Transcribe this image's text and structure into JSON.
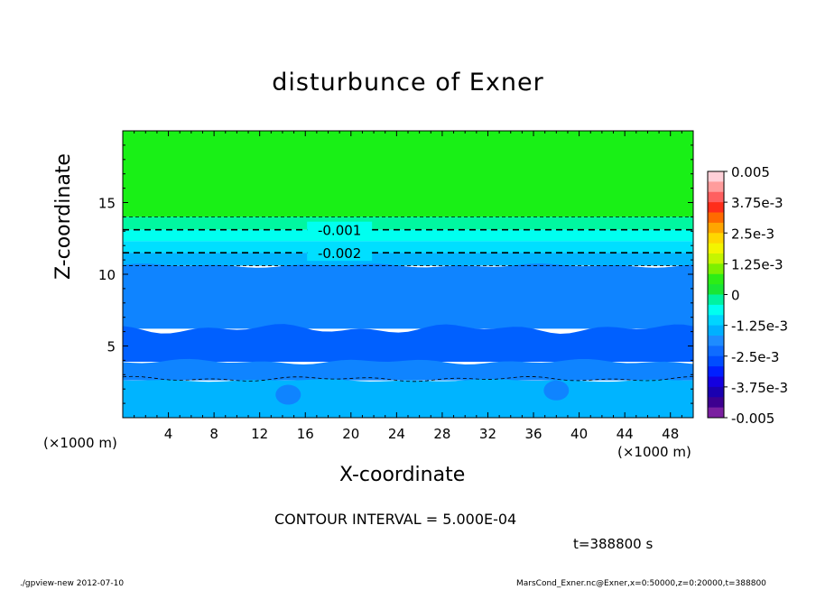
{
  "title": "disturbunce of Exner",
  "x_unit_left": "(×1000 m)",
  "x_unit_right": "(×1000 m)",
  "contour_interval": "CONTOUR INTERVAL = 5.000E-04",
  "time_label": "t=388800 s",
  "footer_left": "./gpview-new   2012-07-10",
  "footer_right": "MarsCond_Exner.nc@Exner,x=0:50000,z=0:20000,t=388800",
  "chart_data": {
    "type": "heatmap",
    "title": "disturbunce of Exner",
    "xlabel": "X-coordinate",
    "ylabel": "Z-coordinate",
    "xlim": [
      0,
      50
    ],
    "ylim": [
      0,
      20
    ],
    "xticks": [
      4,
      8,
      12,
      16,
      20,
      24,
      28,
      32,
      36,
      40,
      44,
      48
    ],
    "yticks": [
      5,
      10,
      15
    ],
    "contour_interval": 0.0005,
    "contour_labels": [
      {
        "text": "-0.001",
        "x": 19,
        "z": 13.1
      },
      {
        "text": "-0.002",
        "x": 19,
        "z": 11.5
      }
    ],
    "dashed_contours_z": [
      14.0,
      13.1,
      11.5,
      10.6
    ],
    "bands": [
      {
        "z_from": 14.0,
        "z_to": 20,
        "value_range": [
          -0.0005,
          0
        ],
        "color": "#19f016"
      },
      {
        "z_from": 13.1,
        "z_to": 14.0,
        "value_range": [
          -0.001,
          -0.0005
        ],
        "color": "#00f7a0"
      },
      {
        "z_from": 12.3,
        "z_to": 13.1,
        "value_range": [
          -0.0015,
          -0.001
        ],
        "color": "#00fff0"
      },
      {
        "z_from": 11.5,
        "z_to": 12.3,
        "value_range": [
          -0.002,
          -0.0015
        ],
        "color": "#00dfff"
      },
      {
        "z_from": 10.6,
        "z_to": 11.5,
        "value_range": [
          -0.0025,
          -0.002
        ],
        "color": "#00b4ff"
      },
      {
        "z_from": 6.2,
        "z_to": 10.6,
        "value_range": [
          -0.003,
          -0.0025
        ],
        "color": "#0f84ff"
      },
      {
        "z_from": 3.9,
        "z_to": 6.2,
        "value_range": [
          -0.0035,
          -0.003
        ],
        "color": "#0060ff"
      },
      {
        "z_from": 2.6,
        "z_to": 3.9,
        "value_range": [
          -0.003,
          -0.0025
        ],
        "color": "#0f84ff"
      },
      {
        "z_from": 0,
        "z_to": 2.6,
        "value_range": [
          -0.0025,
          -0.002
        ],
        "color": "#00b4ff"
      }
    ],
    "colorbar": {
      "range": [
        -0.005,
        0.005
      ],
      "labels": [
        "0.005",
        "3.75e-3",
        "2.5e-3",
        "1.25e-3",
        "0",
        "-1.25e-3",
        "-2.5e-3",
        "-3.75e-3",
        "-0.005"
      ],
      "colors": [
        "#ffd0d8",
        "#ff9c9c",
        "#ff6060",
        "#ff2e1a",
        "#ff6a00",
        "#ffa500",
        "#ffd700",
        "#f3f500",
        "#c5f500",
        "#7cf000",
        "#2ded16",
        "#19e635",
        "#00f2a0",
        "#00fff0",
        "#00d5ff",
        "#00b0ff",
        "#1e8cff",
        "#0f6cff",
        "#004dff",
        "#0020ff",
        "#1400e0",
        "#1a00b0",
        "#3d0090",
        "#7a1fa0"
      ]
    }
  }
}
